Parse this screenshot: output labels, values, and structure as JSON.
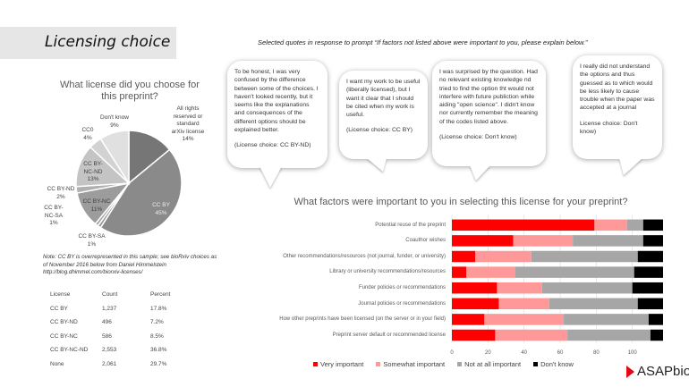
{
  "title": "Licensing choice",
  "prompt": "Selected quotes in response to prompt “If factors not listed above were important to you, please explain below.”",
  "quotes": [
    {
      "text": "To be honest, I was very confused by the difference between some of the choices. I haven't looked recently, but it seems like the explanations and consequences of the different options should be explained better.",
      "choice": "(License choice: CC BY-ND)"
    },
    {
      "text": "I want my work to be useful (liberally licensed), but I want it clear that I should be cited when my work is useful.",
      "choice": "(License choice: CC BY)"
    },
    {
      "text": "I was surprised by the question. Had no relevant existing knowledge nd tried to find the option tht would not interfere with future publiction while aiding \"open science\". I didn't know nor currently remember the meaning of the codes listed above.",
      "choice": "(License choice: Don't know)"
    },
    {
      "text": "I really did not understand the options and thus guessed as to which would be less likely to cause trouble when the paper was accepted at a journal",
      "choice": "License choice: Don't know)"
    }
  ],
  "note": "Note: CC BY is overrepresented in this sample; see bioRxiv choices as of November 2016 below from Daniel Himmelstein http://blog.dhimmel.com/biorxiv-licenses/",
  "table": {
    "headers": [
      "License",
      "Count",
      "Percent"
    ],
    "rows": [
      [
        "CC BY",
        "1,237",
        "17.8%"
      ],
      [
        "CC BY-ND",
        "496",
        "7.2%"
      ],
      [
        "CC BY-NC",
        "586",
        "8.5%"
      ],
      [
        "CC BY-NC-ND",
        "2,553",
        "36.8%"
      ],
      [
        "None",
        "2,061",
        "29.7%"
      ]
    ]
  },
  "logo": "ASAPbio",
  "chart_data": [
    {
      "type": "pie",
      "title": "What license did you choose for this preprint?",
      "slices": [
        {
          "label": "All rights reserved or standard arXiv license",
          "value": 14,
          "display": "14%",
          "color": "#767676"
        },
        {
          "label": "CC BY",
          "value": 45,
          "display": "45%",
          "color": "#8a8a8a"
        },
        {
          "label": "CC BY-SA",
          "value": 1,
          "display": "1%",
          "color": "#9a9a9a"
        },
        {
          "label": "CC BY-NC-SA",
          "value": 1,
          "display": "1%",
          "color": "#a5a5a5"
        },
        {
          "label": "CC BY-NC",
          "value": 11,
          "display": "11%",
          "color": "#9c9c9c"
        },
        {
          "label": "CC BY-ND",
          "value": 2,
          "display": "2%",
          "color": "#b0b0b0"
        },
        {
          "label": "CC BY-NC-ND",
          "value": 13,
          "display": "13%",
          "color": "#c4c4c4"
        },
        {
          "label": "CC0",
          "value": 4,
          "display": "4%",
          "color": "#d2d2d2"
        },
        {
          "label": "Don't know",
          "value": 9,
          "display": "9%",
          "color": "#e0e0e0"
        }
      ]
    },
    {
      "type": "bar",
      "orientation": "horizontal",
      "stacked": true,
      "title": "What factors were important to you in selecting this license for your preprint?",
      "categories": [
        "Potential reuse of the preprint",
        "Coauthor wishes",
        "Other recommendations/resources (not journal, funder, or university)",
        "Library or university recommendations/resources",
        "Funder policies or recommendations",
        "Journal policies or recommendations",
        "How other preprints have been licensed (on the server or in your field)",
        "Preprint server default or recommended license"
      ],
      "series": [
        {
          "name": "Very important",
          "color": "#ff0000",
          "values": [
            79,
            34,
            13,
            8,
            25,
            26,
            18,
            24
          ]
        },
        {
          "name": "Somewhat important",
          "color": "#ff9999",
          "values": [
            18,
            33,
            31,
            27,
            25,
            28,
            44,
            40
          ]
        },
        {
          "name": "Not at all important",
          "color": "#a6a6a6",
          "values": [
            9,
            39,
            59,
            66,
            50,
            49,
            47,
            46
          ]
        },
        {
          "name": "Don't know",
          "color": "#000000",
          "values": [
            11,
            11,
            14,
            16,
            17,
            14,
            8,
            7
          ]
        }
      ],
      "xlim": [
        0,
        117
      ],
      "xticks": [
        "0",
        "20",
        "40",
        "60",
        "80",
        "100"
      ],
      "grid": true,
      "legend": "bottom"
    }
  ]
}
